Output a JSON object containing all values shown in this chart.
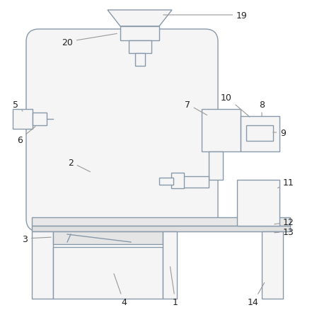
{
  "bg_color": "#ffffff",
  "line_color": "#8899aa",
  "fill_color": "#f5f5f5",
  "label_color": "#222222",
  "figsize": [
    4.48,
    4.39
  ],
  "dpi": 100
}
